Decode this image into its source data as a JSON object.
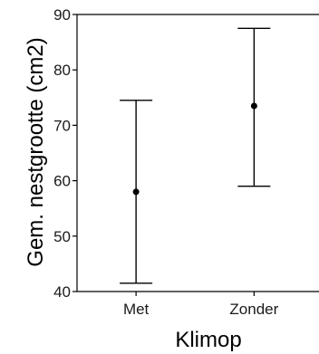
{
  "chart_data": {
    "type": "scatter",
    "xlabel": "Klimop",
    "ylabel": "Gem. nestgrootte (cm2)",
    "categories": [
      "Met",
      "Zonder"
    ],
    "series": [
      {
        "values": [
          58,
          73.5
        ],
        "error_low": [
          41.5,
          59
        ],
        "error_high": [
          74.5,
          87.5
        ]
      }
    ],
    "ylim": [
      40,
      90
    ],
    "yticks": [
      40,
      50,
      60,
      70,
      80,
      90
    ],
    "grid": false,
    "colors": {
      "marks": "#000000",
      "background": "#ffffff"
    }
  }
}
